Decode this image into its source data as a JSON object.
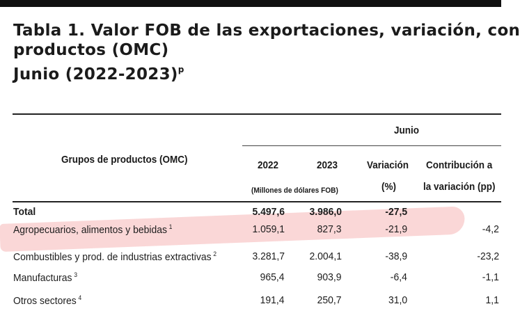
{
  "title": {
    "line1": "Tabla 1. Valor FOB de las exportaciones, variación, con",
    "line2": "productos (OMC)",
    "line3": "Junio (2022-2023)",
    "line3_sup": "p"
  },
  "table": {
    "group_header": "Junio",
    "row_header": "Grupos de productos (OMC)",
    "col_2022": "2022",
    "col_2023": "2023",
    "units": "(Millones de dólares FOB)",
    "variacion_l1": "Variación",
    "variacion_l2": "(%)",
    "contrib_l1": "Contribución a",
    "contrib_l2": "la variación (pp)",
    "rows": [
      {
        "label": "Total",
        "sup": "",
        "v2022": "5.497,6",
        "v2023": "3.986,0",
        "var": "-27,5",
        "contrib": ""
      },
      {
        "label": "Agropecuarios, alimentos y bebidas",
        "sup": "1",
        "v2022": "1.059,1",
        "v2023": "827,3",
        "var": "-21,9",
        "contrib": "-4,2"
      },
      {
        "label": "Combustibles y prod. de industrias extractivas",
        "sup": "2",
        "v2022": "3.281,7",
        "v2023": "2.004,1",
        "var": "-38,9",
        "contrib": "-23,2"
      },
      {
        "label": "Manufacturas",
        "sup": "3",
        "v2022": "965,4",
        "v2023": "903,9",
        "var": "-6,4",
        "contrib": "-1,1"
      },
      {
        "label": "Otros sectores",
        "sup": "4",
        "v2022": "191,4",
        "v2023": "250,7",
        "var": "31,0",
        "contrib": "1,1"
      }
    ]
  },
  "colors": {
    "highlight": "#ee6e6e",
    "text": "#1d1d1d",
    "topbar": "#111111"
  }
}
